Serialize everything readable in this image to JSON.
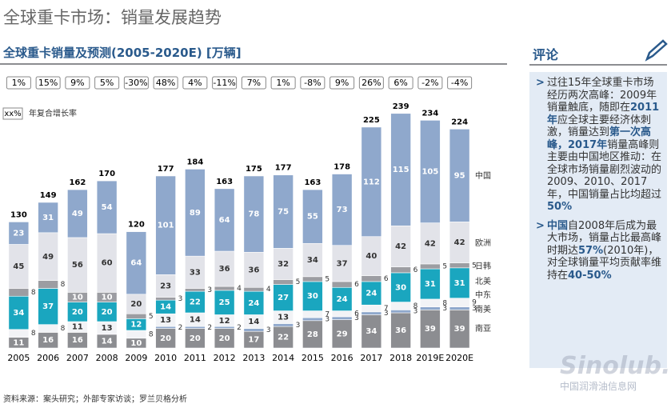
{
  "header": {
    "title": "全球重卡市场：销量发展趋势"
  },
  "chart_data": {
    "type": "stacked-bar",
    "title": "全球重卡销量及预测(2005-2020E) [万辆]",
    "categories": [
      "2005",
      "2006",
      "2007",
      "2008",
      "2009",
      "2010",
      "2011",
      "2012",
      "2013",
      "2014",
      "2015",
      "2016",
      "2017",
      "2018",
      "2019E",
      "2020E"
    ],
    "growth_label": "xx%",
    "growth_legend": "年复合增长率",
    "growth": [
      "1%",
      "15%",
      "9%",
      "5%",
      "-30%",
      "48%",
      "4%",
      "-11%",
      "7%",
      "1%",
      "-8%",
      "9%",
      "26%",
      "6%",
      "-2%",
      "-4%"
    ],
    "totals": [
      130,
      149,
      162,
      170,
      120,
      177,
      184,
      163,
      175,
      177,
      163,
      178,
      225,
      239,
      234,
      224
    ],
    "ylim": [
      0,
      239
    ],
    "series": [
      {
        "name": "南亚",
        "color": "#8c8d91",
        "values": [
          11,
          16,
          16,
          14,
          10,
          20,
          20,
          20,
          17,
          22,
          28,
          29,
          34,
          36,
          39,
          39
        ]
      },
      {
        "name": "南美",
        "color": "#8fa8cc",
        "values": [
          null,
          null,
          null,
          null,
          null,
          2,
          2,
          2,
          3,
          3,
          3,
          3,
          3,
          3,
          3,
          3
        ]
      },
      {
        "name": "中东",
        "color": "#f2f3f6",
        "values": [
          8,
          8,
          11,
          13,
          8,
          13,
          14,
          12,
          14,
          13,
          7,
          6,
          7,
          8,
          8,
          9
        ]
      },
      {
        "name": "北美",
        "color": "#1aa6bf",
        "values": [
          34,
          37,
          20,
          20,
          12,
          14,
          22,
          25,
          24,
          27,
          30,
          24,
          24,
          30,
          31,
          31
        ]
      },
      {
        "name": "日韩",
        "color": "#9c9da2",
        "values": [
          8,
          8,
          10,
          10,
          5,
          3,
          3,
          4,
          4,
          5,
          5,
          6,
          6,
          6,
          5,
          5
        ]
      },
      {
        "name": "欧洲",
        "color": "#e2e3e9",
        "values": [
          45,
          49,
          56,
          60,
          20,
          23,
          33,
          36,
          36,
          32,
          34,
          37,
          40,
          42,
          42,
          42
        ]
      },
      {
        "name": "中国",
        "color": "#8fa8cc",
        "values": [
          23,
          31,
          49,
          54,
          64,
          101,
          89,
          64,
          78,
          75,
          55,
          73,
          112,
          115,
          105,
          95
        ]
      }
    ]
  },
  "comment": {
    "title": "评论",
    "bullets": [
      [
        {
          "text": "过往15年全球重卡市场经历两次高峰：2009年销量触底，随即在",
          "bold": false
        },
        {
          "text": "2011年",
          "bold": true
        },
        {
          "text": "应全球主要经济体刺激，销量达到",
          "bold": false
        },
        {
          "text": "第一次高峰，2017年",
          "bold": true
        },
        {
          "text": "销量高峰则主要由中国地区推动：在全球市场销量剧烈波动的2009、2010、2017年，中国销量占比均超过",
          "bold": false
        },
        {
          "text": "50%",
          "bold": true
        }
      ],
      [
        {
          "text": "中国",
          "bold": true
        },
        {
          "text": "自2008年后成为最大市场，销量占比最高峰时期达",
          "bold": false
        },
        {
          "text": "57%",
          "bold": true
        },
        {
          "text": "(2010年)，对全球销量平均贡献率维持在",
          "bold": false
        },
        {
          "text": "40-50%",
          "bold": true
        }
      ]
    ]
  },
  "footer": {
    "source": "资料来源：案头研究；外部专家访谈；罗兰贝格分析"
  },
  "watermark": {
    "logo": "Sinolub.com",
    "site": "中国润滑油信息网"
  }
}
